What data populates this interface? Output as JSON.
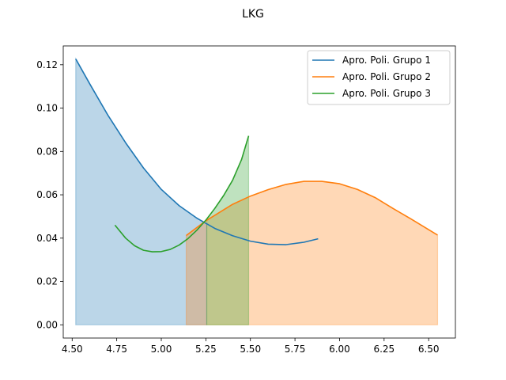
{
  "chart_data": {
    "type": "line",
    "title": "LKG",
    "xlabel": "",
    "ylabel": "",
    "xlim": [
      4.45,
      6.65
    ],
    "ylim": [
      -0.0061,
      0.1287
    ],
    "grid": false,
    "legend_position": "upper right",
    "x_ticks": [
      "4.50",
      "4.75",
      "5.00",
      "5.25",
      "5.50",
      "5.75",
      "6.00",
      "6.25",
      "6.50"
    ],
    "y_ticks": [
      "0.00",
      "0.02",
      "0.04",
      "0.06",
      "0.08",
      "0.10",
      "0.12"
    ],
    "series": [
      {
        "name": "Apro. Poli. Grupo 1",
        "color": "#1f77b4",
        "x": [
          4.52,
          4.6,
          4.7,
          4.8,
          4.9,
          5.0,
          5.1,
          5.2,
          5.3,
          5.4,
          5.5,
          5.6,
          5.7,
          5.8,
          5.88
        ],
        "y": [
          0.1227,
          0.111,
          0.0968,
          0.084,
          0.0724,
          0.0625,
          0.055,
          0.0492,
          0.0445,
          0.0411,
          0.0386,
          0.0372,
          0.037,
          0.0381,
          0.0397
        ],
        "fill": {
          "x_from": 4.52,
          "x_to": 5.255
        }
      },
      {
        "name": "Apro. Poli. Grupo 2",
        "color": "#ff7f0e",
        "x": [
          5.14,
          5.25,
          5.4,
          5.5,
          5.6,
          5.7,
          5.8,
          5.9,
          6.0,
          6.1,
          6.2,
          6.3,
          6.4,
          6.55
        ],
        "y": [
          0.0412,
          0.048,
          0.0556,
          0.0594,
          0.0624,
          0.0648,
          0.0662,
          0.0662,
          0.0651,
          0.0625,
          0.0587,
          0.0537,
          0.0489,
          0.0414
        ],
        "fill": {
          "x_from": 5.14,
          "x_to": 6.55
        }
      },
      {
        "name": "Apro. Poli. Grupo 3",
        "color": "#2ca02c",
        "x": [
          4.74,
          4.8,
          4.85,
          4.9,
          4.95,
          5.0,
          5.05,
          5.1,
          5.15,
          5.2,
          5.25,
          5.3,
          5.35,
          5.4,
          5.45,
          5.49
        ],
        "y": [
          0.046,
          0.04,
          0.0365,
          0.0344,
          0.0337,
          0.0338,
          0.0348,
          0.0368,
          0.0398,
          0.0437,
          0.0483,
          0.0537,
          0.0597,
          0.0667,
          0.0762,
          0.0872
        ],
        "fill": {
          "x_from": 5.255,
          "x_to": 5.49
        }
      }
    ]
  }
}
